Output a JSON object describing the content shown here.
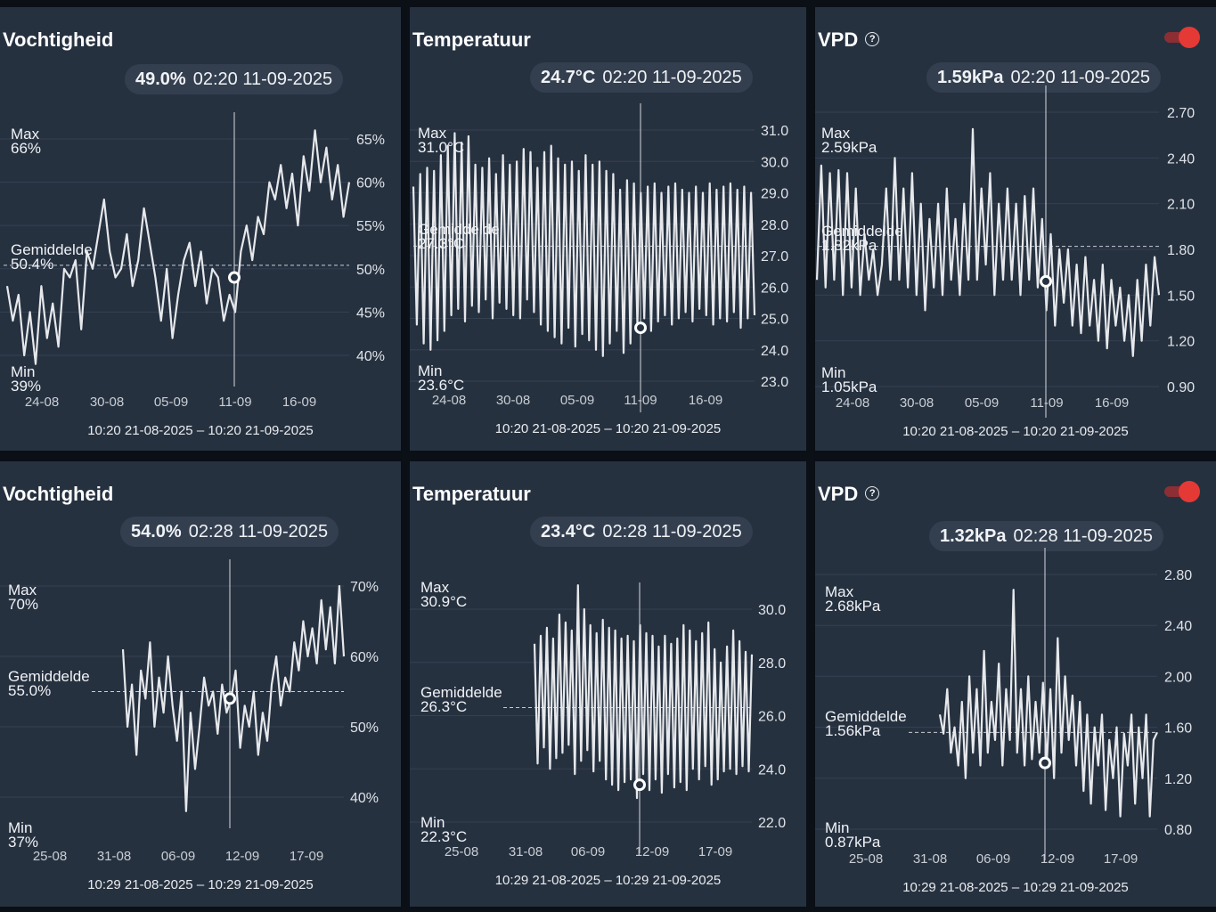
{
  "panels": [
    {
      "title": "Vochtigheid",
      "help": false,
      "toggle": false,
      "readout_value": "49.0%",
      "readout_time": "02:20 11-09-2025",
      "max_label": "Max",
      "max_value": "66%",
      "avg_label": "Gemiddelde",
      "avg_value": "50.4%",
      "min_label": "Min",
      "min_value": "39%",
      "y_ticks": [
        "65%",
        "60%",
        "55%",
        "50%",
        "45%",
        "40%"
      ],
      "x_ticks": [
        "24-08",
        "30-08",
        "05-09",
        "11-09",
        "16-09"
      ],
      "range": "10:20 21-08-2025 – 10:20 21-09-2025"
    },
    {
      "title": "Temperatuur",
      "help": false,
      "toggle": false,
      "readout_value": "24.7°C",
      "readout_time": "02:20 11-09-2025",
      "max_label": "Max",
      "max_value": "31.0°C",
      "avg_label": "Gemiddelde",
      "avg_value": "27.3°C",
      "min_label": "Min",
      "min_value": "23.6°C",
      "y_ticks": [
        "31.0",
        "30.0",
        "29.0",
        "28.0",
        "27.0",
        "26.0",
        "25.0",
        "24.0",
        "23.0"
      ],
      "x_ticks": [
        "24-08",
        "30-08",
        "05-09",
        "11-09",
        "16-09"
      ],
      "range": "10:20 21-08-2025 – 10:20 21-09-2025"
    },
    {
      "title": "VPD",
      "help": true,
      "toggle": true,
      "toggle_on": true,
      "readout_value": "1.59kPa",
      "readout_time": "02:20 11-09-2025",
      "max_label": "Max",
      "max_value": "2.59kPa",
      "avg_label": "Gemiddelde",
      "avg_value": "1.82kPa",
      "min_label": "Min",
      "min_value": "1.05kPa",
      "y_ticks": [
        "2.70",
        "2.40",
        "2.10",
        "1.80",
        "1.50",
        "1.20",
        "0.90"
      ],
      "x_ticks": [
        "24-08",
        "30-08",
        "05-09",
        "11-09",
        "16-09"
      ],
      "range": "10:20 21-08-2025 – 10:20 21-09-2025"
    },
    {
      "title": "Vochtigheid",
      "help": false,
      "toggle": false,
      "readout_value": "54.0%",
      "readout_time": "02:28 11-09-2025",
      "max_label": "Max",
      "max_value": "70%",
      "avg_label": "Gemiddelde",
      "avg_value": "55.0%",
      "min_label": "Min",
      "min_value": "37%",
      "y_ticks": [
        "70%",
        "60%",
        "50%",
        "40%"
      ],
      "x_ticks": [
        "25-08",
        "31-08",
        "06-09",
        "12-09",
        "17-09"
      ],
      "range": "10:29 21-08-2025 – 10:29 21-09-2025"
    },
    {
      "title": "Temperatuur",
      "help": false,
      "toggle": false,
      "readout_value": "23.4°C",
      "readout_time": "02:28 11-09-2025",
      "max_label": "Max",
      "max_value": "30.9°C",
      "avg_label": "Gemiddelde",
      "avg_value": "26.3°C",
      "min_label": "Min",
      "min_value": "22.3°C",
      "y_ticks": [
        "30.0",
        "28.0",
        "26.0",
        "24.0",
        "22.0"
      ],
      "x_ticks": [
        "25-08",
        "31-08",
        "06-09",
        "12-09",
        "17-09"
      ],
      "range": "10:29 21-08-2025 – 10:29 21-09-2025"
    },
    {
      "title": "VPD",
      "help": true,
      "toggle": true,
      "toggle_on": true,
      "readout_value": "1.32kPa",
      "readout_time": "02:28 11-09-2025",
      "max_label": "Max",
      "max_value": "2.68kPa",
      "avg_label": "Gemiddelde",
      "avg_value": "1.56kPa",
      "min_label": "Min",
      "min_value": "0.87kPa",
      "y_ticks": [
        "2.80",
        "2.40",
        "2.00",
        "1.60",
        "1.20",
        "0.80"
      ],
      "x_ticks": [
        "25-08",
        "31-08",
        "06-09",
        "12-09",
        "17-09"
      ],
      "range": "10:29 21-08-2025 – 10:29 21-09-2025"
    }
  ],
  "colors": {
    "card": "#263140",
    "line": "#e6e8eb",
    "toggle": "#e53935",
    "background": "#0b0f16"
  },
  "chart_data": [
    {
      "type": "line",
      "title": "Vochtigheid",
      "x_ticks": [
        "24-08",
        "30-08",
        "05-09",
        "11-09",
        "16-09"
      ],
      "y_ticks": [
        "65%",
        "60%",
        "55%",
        "50%",
        "45%",
        "40%"
      ],
      "ylim": [
        37,
        67
      ],
      "y_tick_values": [
        65,
        60,
        55,
        50,
        45,
        40
      ],
      "max": 66,
      "mean": 50.4,
      "min": 39,
      "cursor_value": 49.0,
      "cursor_date": "11-09",
      "x": [
        0,
        1,
        2,
        3,
        4,
        5,
        6,
        7,
        8,
        9,
        10,
        11,
        12,
        13,
        14,
        15,
        16,
        17,
        18,
        19,
        20,
        21,
        22,
        23,
        24,
        25,
        26,
        27,
        28,
        29,
        30,
        31,
        32,
        33,
        34,
        35,
        36,
        37,
        38,
        39,
        40,
        41,
        42,
        43,
        44,
        45,
        46,
        47,
        48,
        49,
        50,
        51,
        52,
        53,
        54,
        55,
        56,
        57,
        58,
        59,
        60
      ],
      "values": [
        48,
        44,
        47,
        40,
        45,
        39,
        48,
        42,
        46,
        41,
        50,
        49,
        51,
        43,
        52,
        50,
        54,
        58,
        52,
        49,
        50,
        54,
        48,
        51,
        57,
        53,
        49,
        44,
        50,
        42,
        47,
        51,
        53,
        48,
        52,
        46,
        50,
        49,
        44,
        47,
        45,
        52,
        55,
        51,
        56,
        54,
        60,
        58,
        62,
        57,
        61,
        55,
        63,
        59,
        66,
        60,
        64,
        58,
        62,
        56,
        60
      ]
    },
    {
      "type": "line",
      "title": "Temperatuur",
      "x_ticks": [
        "24-08",
        "30-08",
        "05-09",
        "11-09",
        "16-09"
      ],
      "y_ticks": [
        "31.0",
        "30.0",
        "29.0",
        "28.0",
        "27.0",
        "26.0",
        "25.0",
        "24.0",
        "23.0"
      ],
      "ylim": [
        22.8,
        31.2
      ],
      "y_tick_values": [
        31,
        30,
        29,
        28,
        27,
        26,
        25,
        24,
        23
      ],
      "max": 31.0,
      "mean": 27.3,
      "min": 23.6,
      "cursor_value": 24.7,
      "cursor_date": "11-09",
      "x": [
        0,
        1,
        2,
        3,
        4,
        5,
        6,
        7,
        8,
        9,
        10,
        11,
        12,
        13,
        14,
        15,
        16,
        17,
        18,
        19,
        20,
        21,
        22,
        23,
        24,
        25,
        26,
        27,
        28,
        29,
        30,
        31,
        32,
        33,
        34,
        35,
        36,
        37,
        38,
        39,
        40,
        41,
        42,
        43,
        44,
        45,
        46,
        47,
        48,
        49,
        50,
        51,
        52,
        53,
        54,
        55,
        56,
        57,
        58,
        59,
        60,
        61,
        62,
        63,
        64,
        65,
        66,
        67,
        68,
        69,
        70,
        71,
        72,
        73,
        74,
        75,
        76,
        77,
        78,
        79,
        80,
        81,
        82,
        83,
        84,
        85,
        86,
        87,
        88,
        89,
        90,
        91,
        92,
        93,
        94,
        95,
        96,
        97,
        98,
        99
      ],
      "values": [
        29.2,
        24.8,
        29.6,
        24.2,
        29.8,
        24.0,
        29.7,
        24.3,
        30.2,
        24.6,
        30.5,
        25.1,
        30.9,
        25.3,
        30.6,
        24.9,
        30.8,
        25.4,
        29.9,
        25.2,
        29.8,
        25.6,
        30.1,
        25.0,
        29.6,
        25.5,
        30.2,
        25.3,
        29.9,
        25.1,
        30.0,
        25.0,
        30.4,
        25.6,
        30.3,
        25.2,
        29.8,
        24.8,
        30.3,
        24.6,
        30.5,
        24.4,
        30.1,
        24.2,
        29.9,
        24.7,
        30.0,
        24.1,
        29.7,
        24.5,
        30.2,
        24.3,
        29.9,
        24.0,
        30.0,
        23.8,
        29.7,
        24.2,
        29.6,
        24.6,
        29.1,
        23.9,
        29.4,
        24.2,
        29.3,
        24.8,
        29.0,
        25.0,
        29.2,
        24.6,
        29.3,
        24.9,
        29.0,
        25.1,
        29.2,
        24.8,
        29.3,
        25.0,
        29.1,
        25.2,
        29.0,
        24.9,
        29.2,
        25.3,
        29.0,
        25.1,
        29.3,
        24.8,
        29.1,
        25.0,
        29.2,
        24.9,
        29.3,
        25.2,
        29.1,
        24.7,
        29.2,
        25.0,
        29.0,
        25.1
      ]
    },
    {
      "type": "line",
      "title": "VPD",
      "x_ticks": [
        "24-08",
        "30-08",
        "05-09",
        "11-09",
        "16-09"
      ],
      "y_ticks": [
        "2.70",
        "2.40",
        "2.10",
        "1.80",
        "1.50",
        "1.20",
        "0.90"
      ],
      "ylim": [
        0.85,
        2.75
      ],
      "y_tick_values": [
        2.7,
        2.4,
        2.1,
        1.8,
        1.5,
        1.2,
        0.9
      ],
      "max": 2.59,
      "mean": 1.82,
      "min": 1.05,
      "cursor_value": 1.59,
      "cursor_date": "11-09",
      "x": [
        0,
        1,
        2,
        3,
        4,
        5,
        6,
        7,
        8,
        9,
        10,
        11,
        12,
        13,
        14,
        15,
        16,
        17,
        18,
        19,
        20,
        21,
        22,
        23,
        24,
        25,
        26,
        27,
        28,
        29,
        30,
        31,
        32,
        33,
        34,
        35,
        36,
        37,
        38,
        39,
        40,
        41,
        42,
        43,
        44,
        45,
        46,
        47,
        48,
        49,
        50,
        51,
        52,
        53,
        54,
        55,
        56,
        57,
        58,
        59,
        60,
        61,
        62,
        63,
        64,
        65,
        66,
        67,
        68,
        69,
        70,
        71,
        72,
        73,
        74,
        75,
        76,
        77,
        78,
        79
      ],
      "values": [
        1.6,
        2.35,
        1.55,
        2.3,
        1.6,
        2.32,
        1.5,
        2.3,
        1.55,
        2.2,
        1.5,
        1.9,
        1.6,
        1.8,
        1.5,
        1.7,
        2.2,
        1.6,
        2.4,
        1.6,
        2.2,
        1.55,
        2.3,
        1.5,
        2.1,
        1.4,
        2.0,
        1.55,
        2.1,
        1.5,
        2.2,
        1.6,
        2.0,
        1.5,
        2.1,
        1.6,
        2.59,
        1.6,
        2.2,
        1.7,
        2.3,
        1.5,
        2.1,
        1.6,
        2.2,
        1.6,
        2.1,
        1.5,
        2.15,
        1.6,
        2.2,
        1.55,
        2.0,
        1.4,
        1.9,
        1.3,
        1.8,
        1.45,
        1.8,
        1.3,
        1.7,
        1.25,
        1.75,
        1.3,
        1.6,
        1.2,
        1.7,
        1.15,
        1.6,
        1.3,
        1.55,
        1.2,
        1.5,
        1.1,
        1.6,
        1.2,
        1.7,
        1.3,
        1.75,
        1.5
      ]
    },
    {
      "type": "line",
      "title": "Vochtigheid",
      "x_ticks": [
        "25-08",
        "31-08",
        "06-09",
        "12-09",
        "17-09"
      ],
      "y_ticks": [
        "70%",
        "60%",
        "50%",
        "40%"
      ],
      "ylim": [
        35,
        72
      ],
      "y_tick_values": [
        70,
        60,
        50,
        40
      ],
      "max": 70,
      "mean": 55.0,
      "min": 37,
      "cursor_value": 54.0,
      "cursor_date": "12-09",
      "x": [
        0,
        1,
        2,
        3,
        4,
        5,
        6,
        7,
        8,
        9,
        10,
        11,
        12,
        13,
        14,
        15,
        16,
        17,
        18,
        19,
        20,
        21,
        22,
        23,
        24,
        25,
        26,
        27,
        28,
        29,
        30,
        31,
        32,
        33,
        34,
        35,
        36,
        37,
        38,
        39,
        40,
        41,
        42,
        43,
        44,
        45,
        46,
        47,
        48,
        49
      ],
      "values": [
        61,
        50,
        56,
        46,
        58,
        54,
        62,
        50,
        57,
        52,
        60,
        53,
        48,
        55,
        38,
        52,
        44,
        50,
        57,
        53,
        55,
        49,
        56,
        52,
        54,
        58,
        47,
        53,
        50,
        55,
        46,
        52,
        48,
        56,
        60,
        53,
        57,
        55,
        62,
        58,
        65,
        60,
        64,
        59,
        68,
        61,
        67,
        59,
        70,
        60
      ]
    },
    {
      "type": "line",
      "title": "Temperatuur",
      "x_ticks": [
        "25-08",
        "31-08",
        "06-09",
        "12-09",
        "17-09"
      ],
      "y_ticks": [
        "30.0",
        "28.0",
        "26.0",
        "24.0",
        "22.0"
      ],
      "ylim": [
        21.8,
        31.0
      ],
      "y_tick_values": [
        30,
        28,
        26,
        24,
        22
      ],
      "max": 30.9,
      "mean": 26.3,
      "min": 22.3,
      "cursor_value": 23.4,
      "cursor_date": "12-09",
      "x": [
        0,
        1,
        2,
        3,
        4,
        5,
        6,
        7,
        8,
        9,
        10,
        11,
        12,
        13,
        14,
        15,
        16,
        17,
        18,
        19,
        20,
        21,
        22,
        23,
        24,
        25,
        26,
        27,
        28,
        29,
        30,
        31,
        32,
        33,
        34,
        35,
        36,
        37,
        38,
        39,
        40,
        41,
        42,
        43,
        44,
        45,
        46,
        47,
        48,
        49,
        50,
        51,
        52,
        53,
        54,
        55,
        56,
        57,
        58,
        59,
        60,
        61,
        62,
        63,
        64,
        65,
        66,
        67,
        68,
        69,
        70
      ],
      "values": [
        28.7,
        24.2,
        29.0,
        24.8,
        29.3,
        24.0,
        28.9,
        24.4,
        29.8,
        24.6,
        29.5,
        24.9,
        29.2,
        23.8,
        30.9,
        24.3,
        30.0,
        24.7,
        29.4,
        23.9,
        29.1,
        24.3,
        29.6,
        23.6,
        29.3,
        23.4,
        29.2,
        23.2,
        28.9,
        23.5,
        29.0,
        23.6,
        28.8,
        22.9,
        29.4,
        23.8,
        29.1,
        23.2,
        29.0,
        23.6,
        28.6,
        23.1,
        29.0,
        23.8,
        28.7,
        23.3,
        28.9,
        23.5,
        29.4,
        23.2,
        29.2,
        24.0,
        28.8,
        23.6,
        29.1,
        24.1,
        29.5,
        23.4,
        28.5,
        23.6,
        28.0,
        23.9,
        28.6,
        24.0,
        29.2,
        23.8,
        28.8,
        24.1,
        28.4,
        23.9,
        28.3
      ]
    },
    {
      "type": "line",
      "title": "VPD",
      "x_ticks": [
        "25-08",
        "31-08",
        "06-09",
        "12-09",
        "17-09"
      ],
      "y_ticks": [
        "2.80",
        "2.40",
        "2.00",
        "1.60",
        "1.20",
        "0.80"
      ],
      "ylim": [
        0.75,
        2.85
      ],
      "y_tick_values": [
        2.8,
        2.4,
        2.0,
        1.6,
        1.2,
        0.8
      ],
      "max": 2.68,
      "mean": 1.56,
      "min": 0.87,
      "cursor_value": 1.32,
      "cursor_date": "12-09",
      "x": [
        0,
        1,
        2,
        3,
        4,
        5,
        6,
        7,
        8,
        9,
        10,
        11,
        12,
        13,
        14,
        15,
        16,
        17,
        18,
        19,
        20,
        21,
        22,
        23,
        24,
        25,
        26,
        27,
        28,
        29,
        30,
        31,
        32,
        33,
        34,
        35,
        36,
        37,
        38,
        39,
        40,
        41,
        42,
        43,
        44,
        45,
        46,
        47,
        48,
        49,
        50,
        51,
        52,
        53,
        54,
        55,
        56,
        57,
        58,
        59
      ],
      "values": [
        1.7,
        1.55,
        1.9,
        1.4,
        1.6,
        1.3,
        1.8,
        1.2,
        2.0,
        1.4,
        1.9,
        1.3,
        2.2,
        1.4,
        1.8,
        1.5,
        2.1,
        1.3,
        1.9,
        1.5,
        2.68,
        1.4,
        1.9,
        1.3,
        2.0,
        1.35,
        1.8,
        1.4,
        1.95,
        1.3,
        1.9,
        1.2,
        2.3,
        1.4,
        2.0,
        1.5,
        1.85,
        1.3,
        1.8,
        1.1,
        1.7,
        1.0,
        1.6,
        1.3,
        1.7,
        0.95,
        1.5,
        1.2,
        1.6,
        0.9,
        1.55,
        1.3,
        1.7,
        1.0,
        1.6,
        1.2,
        1.7,
        0.9,
        1.5,
        1.56
      ]
    }
  ]
}
